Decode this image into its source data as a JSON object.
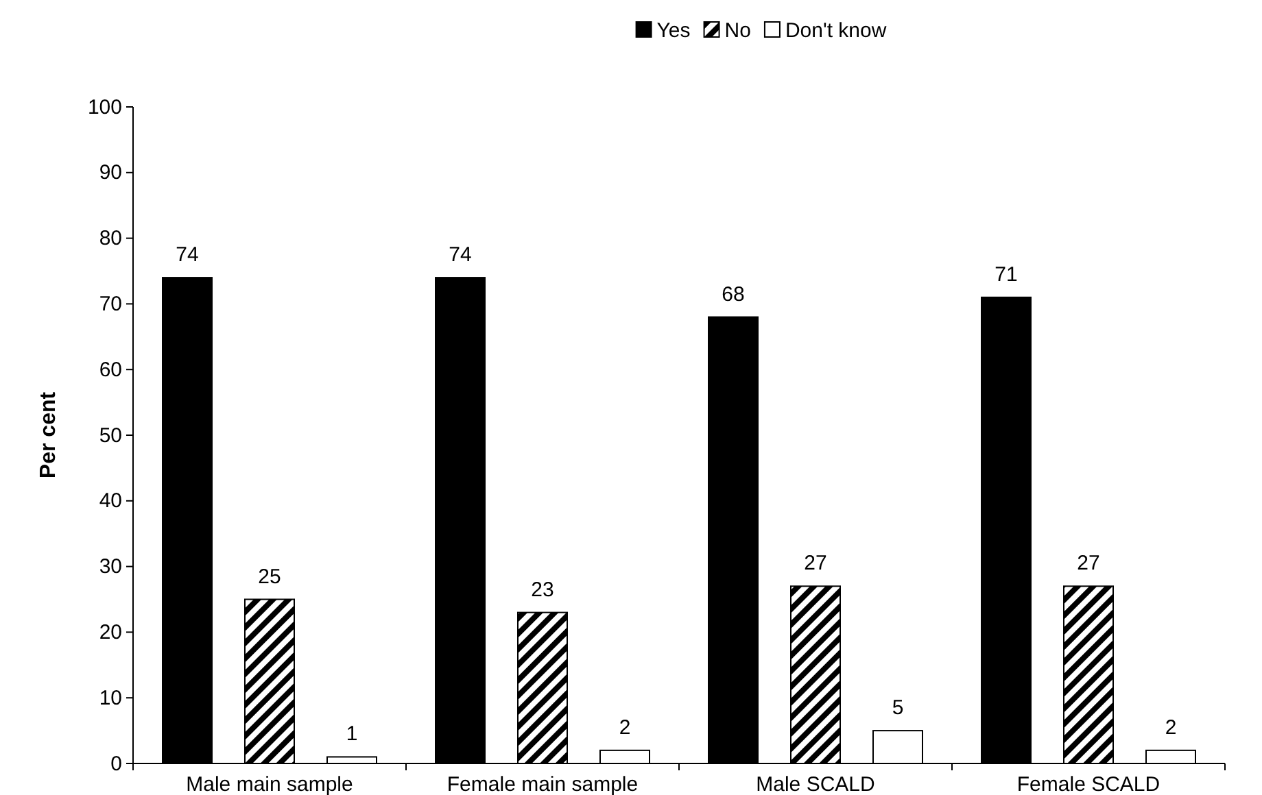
{
  "chart_data": {
    "type": "bar",
    "ylabel": "Per cent",
    "categories": [
      "Male main sample",
      "Female main sample",
      "Male SCALD",
      "Female SCALD"
    ],
    "series": [
      {
        "name": "Yes",
        "color": "#000000",
        "values": [
          74,
          74,
          68,
          71
        ]
      },
      {
        "name": "No",
        "color": "#000000",
        "values": [
          25,
          23,
          27,
          27
        ]
      },
      {
        "name": "Don't know",
        "color": "#ffffff",
        "values": [
          1,
          2,
          5,
          2
        ]
      }
    ],
    "ylim": [
      0,
      100
    ],
    "yticks": [
      0,
      10,
      20,
      30,
      40,
      50,
      60,
      70,
      80,
      90,
      100
    ],
    "data_labels": true,
    "legend": "top",
    "grid": false
  }
}
